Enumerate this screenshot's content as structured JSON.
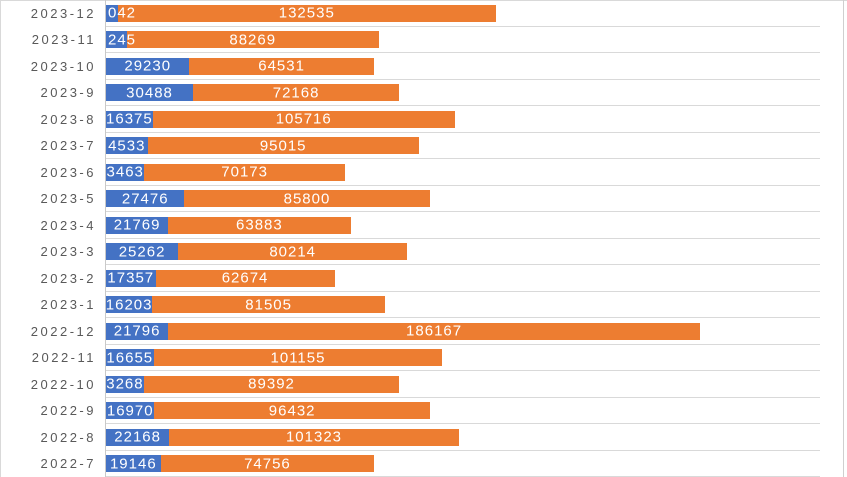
{
  "chart_data": {
    "type": "bar",
    "orientation": "horizontal",
    "stacked": true,
    "title": "",
    "xlabel": "",
    "ylabel": "",
    "xlim": [
      0,
      250000
    ],
    "legend": "none",
    "gridlines": "light horizontal row separators, category axis line at left",
    "categories": [
      "2023-12",
      "2023-11",
      "2023-10",
      "2023-9",
      "2023-8",
      "2023-7",
      "2023-6",
      "2023-5",
      "2023-4",
      "2023-3",
      "2023-2",
      "2023-1",
      "2022-12",
      "2022-11",
      "2022-10",
      "2022-9",
      "2022-8",
      "2022-7"
    ],
    "series": [
      {
        "name": "blue-segment",
        "color": "#4472C4",
        "values": [
          4042,
          7245,
          29230,
          30488,
          16375,
          14533,
          13463,
          27476,
          21769,
          25262,
          17357,
          16203,
          21796,
          16655,
          13268,
          16970,
          22168,
          19146
        ],
        "visible_labels": [
          "042",
          "245",
          "29230",
          "30488",
          "16375",
          "4533",
          "3463",
          "27476",
          "21769",
          "25262",
          "17357",
          "16203",
          "21796",
          "16655",
          "3268",
          "16970",
          "22168",
          "19146"
        ]
      },
      {
        "name": "orange-segment",
        "color": "#ED7D31",
        "values": [
          132535,
          88269,
          64531,
          72168,
          105716,
          95015,
          70173,
          85800,
          63883,
          80214,
          62674,
          81505,
          186167,
          101155,
          89392,
          96432,
          101323,
          74756
        ],
        "visible_labels": [
          "132535",
          "88269",
          "64531",
          "72168",
          "105716",
          "95015",
          "70173",
          "85800",
          "63883",
          "80214",
          "62674",
          "81505",
          "186167",
          "101155",
          "89392",
          "96432",
          "101323",
          "74756"
        ]
      }
    ],
    "label_style": {
      "data_label_color": "#FFFFFF",
      "category_label_color": "#595959",
      "blue_label_align_base_rows": [
        "2023-12",
        "2023-11"
      ]
    }
  }
}
